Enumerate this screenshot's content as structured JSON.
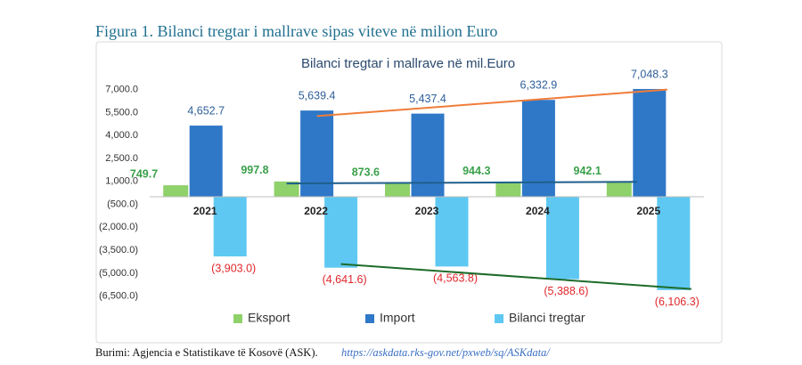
{
  "caption": "Figura 1. Bilanci tregtar i mallrave sipas viteve në milion Euro",
  "source": {
    "text": "Burimi: Agjencia e Statistikave të Kosovë (ASK).",
    "link": "https://askdata.rks-gov.net/pxweb/sq/ASKdata/"
  },
  "chart_data": {
    "type": "bar",
    "title": "Bilanci tregtar i mallrave në mil.Euro",
    "categories": [
      "2021",
      "2022",
      "2023",
      "2024",
      "2025"
    ],
    "series": [
      {
        "name": "Eksport",
        "color": "#8fd16a",
        "label_color": "#3aa04a",
        "trend_color": "#1f5f8b",
        "values": [
          749.7,
          997.8,
          873.6,
          944.3,
          942.1
        ],
        "value_labels": [
          "749.7",
          "997.8",
          "873.6",
          "944.3",
          "942.1"
        ]
      },
      {
        "name": "Import",
        "color": "#2f78c8",
        "label_color": "#2f5f9a",
        "trend_color": "#f07d3a",
        "values": [
          4652.7,
          5639.4,
          5437.4,
          6332.9,
          7048.3
        ],
        "value_labels": [
          "4,652.7",
          "5,639.4",
          "5,437.4",
          "6,332.9",
          "7,048.3"
        ]
      },
      {
        "name": "Bilanci tregtar",
        "color": "#5ec8f2",
        "label_color": "#e0262b",
        "trend_color": "#1e6b2a",
        "values": [
          -3903.0,
          -4641.6,
          -4563.8,
          -5388.6,
          -6106.3
        ],
        "value_labels": [
          "(3,903.0)",
          "(4,641.6)",
          "(4,563.8)",
          "(5,388.6)",
          "(6,106.3)"
        ]
      }
    ],
    "ylim": [
      -7000,
      7500
    ],
    "yticks": [
      {
        "value": 7000,
        "label": "7,000.0"
      },
      {
        "value": 5500,
        "label": "5,500.0"
      },
      {
        "value": 4000,
        "label": "4,000.0"
      },
      {
        "value": 2500,
        "label": "2,500.0"
      },
      {
        "value": 1000,
        "label": "1,000.0"
      },
      {
        "value": -500,
        "label": "(500.0)"
      },
      {
        "value": -2000,
        "label": "(2,000.0)"
      },
      {
        "value": -3500,
        "label": "(3,500.0)"
      },
      {
        "value": -5000,
        "label": "(5,000.0)"
      },
      {
        "value": -6500,
        "label": "(6,500.0)"
      }
    ],
    "grid": false,
    "trendlines": true,
    "legend": "bottom"
  }
}
